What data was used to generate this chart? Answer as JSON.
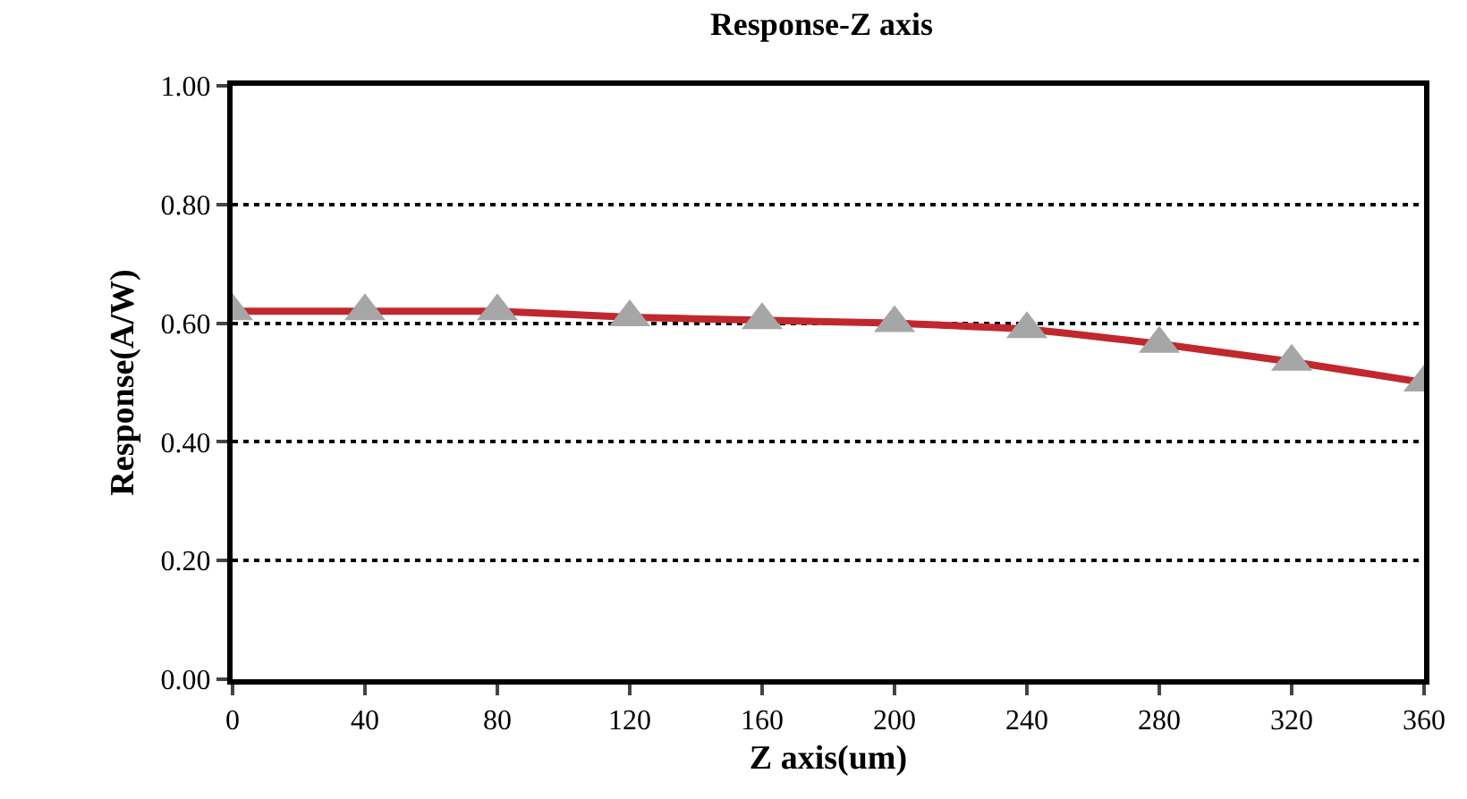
{
  "chart_data": {
    "type": "line",
    "title": "Response-Z axis",
    "xlabel": "Z axis(um)",
    "ylabel": "Response(A/W)",
    "x": [
      0,
      40,
      80,
      120,
      160,
      200,
      240,
      280,
      320,
      360
    ],
    "series": [
      {
        "color": "#c0282d",
        "values": [
          0.62,
          0.62,
          0.62,
          0.61,
          0.605,
          0.6,
          0.59,
          0.565,
          0.535,
          0.5
        ]
      }
    ],
    "marker": "triangle",
    "line_style": "solid",
    "xlim": [
      0,
      360
    ],
    "xticks": [
      0,
      40,
      80,
      120,
      160,
      200,
      240,
      280,
      320,
      360
    ],
    "ylim": [
      0,
      1
    ],
    "yticks": [
      {
        "value": 0,
        "label": "0.00"
      },
      {
        "value": 0.2,
        "label": "0.20"
      },
      {
        "value": 0.4,
        "label": "0.40"
      },
      {
        "value": 0.6,
        "label": "0.60"
      },
      {
        "value": 0.8,
        "label": "0.80"
      },
      {
        "value": 1,
        "label": "1.00"
      }
    ],
    "grid": "y"
  }
}
